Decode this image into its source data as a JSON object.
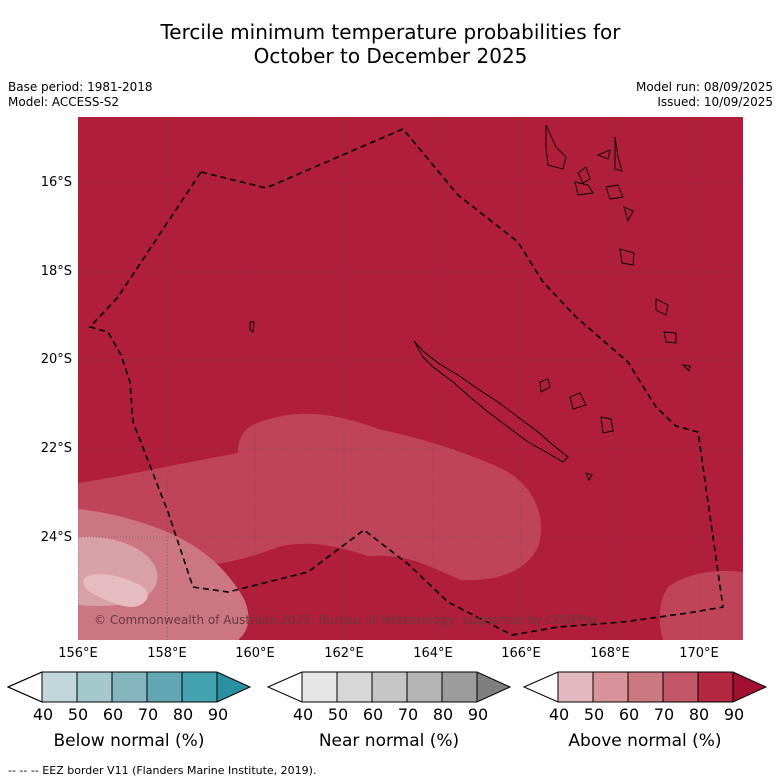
{
  "title_line1": "Tercile minimum temperature probabilities for",
  "title_line2": "October to December 2025",
  "meta_left": {
    "base_period": "Base period: 1981-2018",
    "model": "Model: ACCESS-S2"
  },
  "meta_right": {
    "model_run": "Model run: 08/09/2025",
    "issued": "Issued: 10/09/2025"
  },
  "map": {
    "lat_labels": [
      "16°S",
      "18°S",
      "20°S",
      "22°S",
      "24°S"
    ],
    "lon_labels": [
      "156°E",
      "158°E",
      "160°E",
      "162°E",
      "164°E",
      "166°E",
      "168°E",
      "170°E"
    ],
    "copyright": "© Commonwealth of Australia 2025, Bureau of Meteorology, supported by COSPPac",
    "dominant_category": "Above normal",
    "dominant_probability": "80-90",
    "colors": {
      "above_80_90": "#b01e3a",
      "above_70_80": "#c04458",
      "above_60_70": "#cb7681",
      "above_50_60": "#d8a1a8"
    }
  },
  "colorbars": [
    {
      "name": "below",
      "title": "Below normal (%)",
      "ticks": [
        "40",
        "50",
        "60",
        "70",
        "80",
        "90"
      ],
      "colors": [
        "#c1d7dc",
        "#a5c8cd",
        "#85b6c0",
        "#63a7b4",
        "#44a1b0",
        "#2a8fa0"
      ]
    },
    {
      "name": "near",
      "title": "Near normal (%)",
      "ticks": [
        "40",
        "50",
        "60",
        "70",
        "80",
        "90"
      ],
      "colors": [
        "#e6e6e6",
        "#d7d7d7",
        "#c6c6c6",
        "#b4b4b4",
        "#9c9c9c",
        "#7f7f7f"
      ]
    },
    {
      "name": "above",
      "title": "Above normal (%)",
      "ticks": [
        "40",
        "50",
        "60",
        "70",
        "80",
        "90"
      ],
      "colors": [
        "#e2b9bf",
        "#d8939b",
        "#cc7881",
        "#c35668",
        "#b52842",
        "#a01033"
      ]
    }
  ],
  "footer": "--  --  -- EEZ border V11 (Flanders Marine Institute, 2019)."
}
